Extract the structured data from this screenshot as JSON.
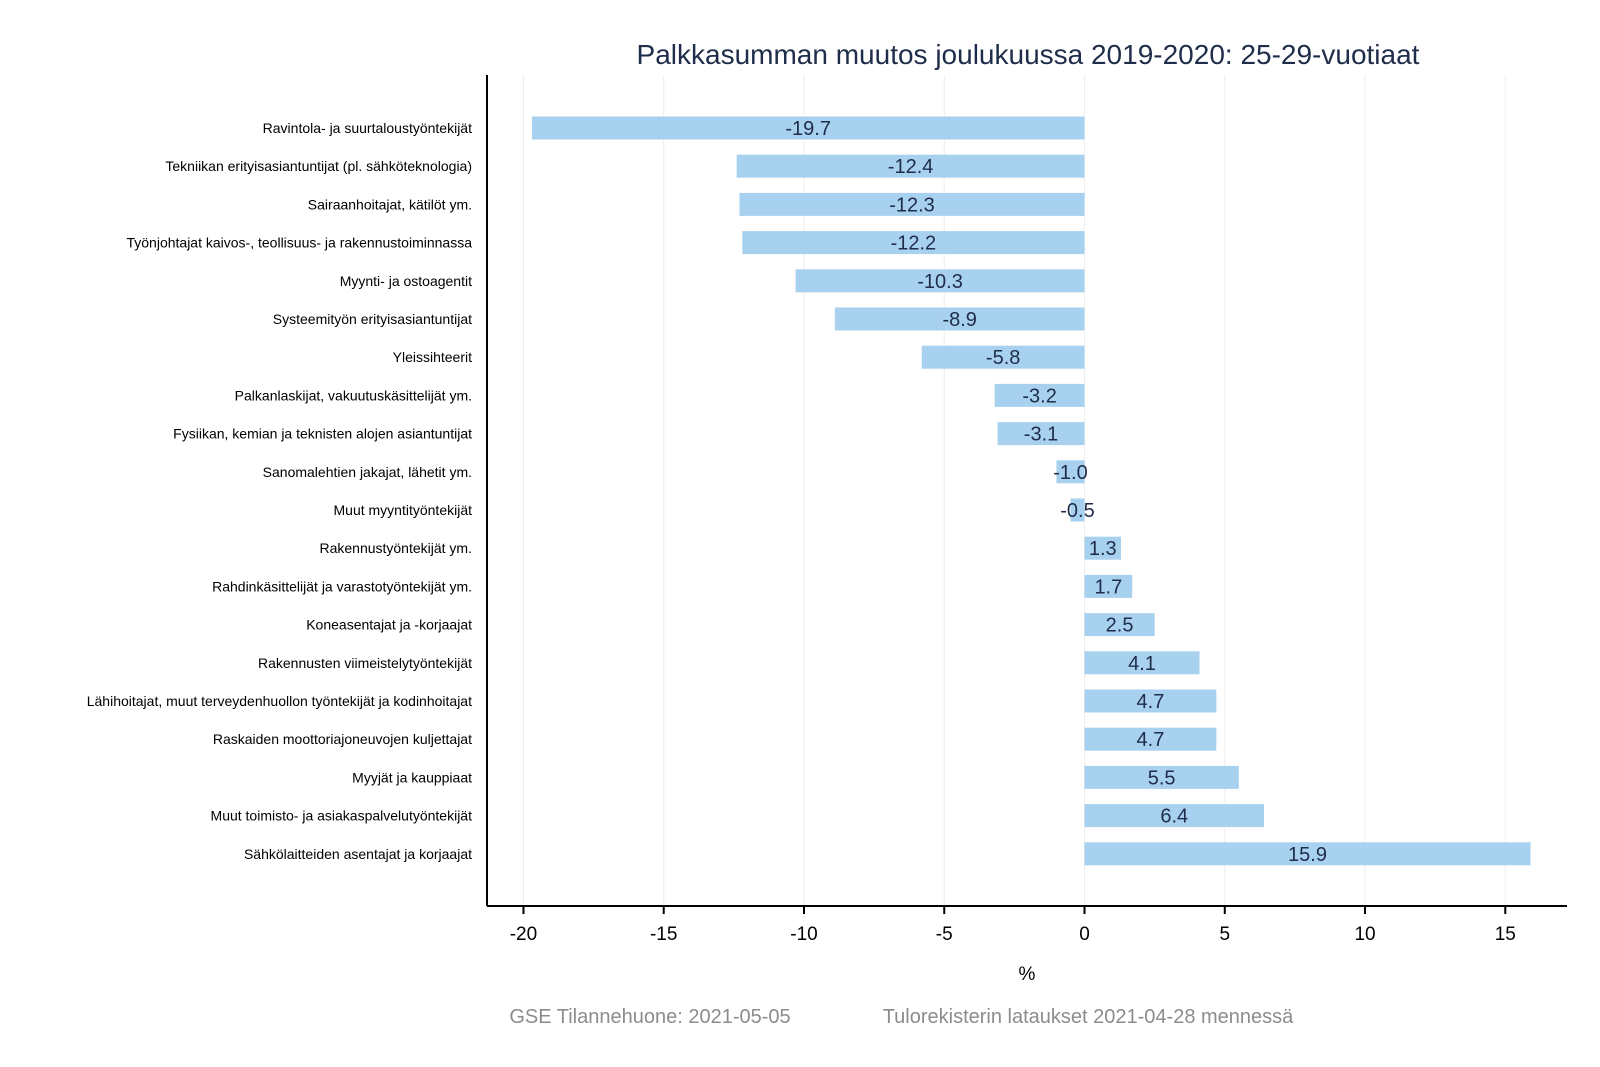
{
  "chart_data": {
    "type": "bar",
    "orientation": "horizontal",
    "title": "Palkkasumman muutos joulukuussa 2019-2020: 25-29-vuotiaat",
    "xlabel": "%",
    "ylabel": "",
    "xlim": [
      -21.3,
      17.2
    ],
    "xticks": [
      -20,
      -15,
      -10,
      -5,
      0,
      5,
      10,
      15
    ],
    "xtick_labels": [
      "-20",
      "-15",
      "-10",
      "-5",
      "0",
      "5",
      "10",
      "15"
    ],
    "grid": true,
    "bar_color": "#a8d1f0",
    "categories": [
      "Ravintola- ja suurtaloustyöntekijät",
      "Tekniikan erityisasiantuntijat (pl. sähköteknologia)",
      "Sairaanhoitajat, kätilöt ym.",
      "Työnjohtajat kaivos-, teollisuus- ja rakennustoiminnassa",
      "Myynti- ja ostoagentit",
      "Systeemityön erityisasiantuntijat",
      "Yleissihteerit",
      "Palkanlaskijat, vakuutuskäsittelijät ym.",
      "Fysiikan, kemian ja teknisten alojen asiantuntijat",
      "Sanomalehtien jakajat, lähetit ym.",
      "Muut myyntityöntekijät",
      "Rakennustyöntekijät ym.",
      "Rahdinkäsittelijät ja varastotyöntekijät ym.",
      "Koneasentajat ja -korjaajat",
      "Rakennusten viimeistelytyöntekijät",
      "Lähihoitajat, muut terveydenhuollon työntekijät ja kodinhoitajat",
      "Raskaiden moottoriajoneuvojen kuljettajat",
      "Myyjät ja kauppiaat",
      "Muut toimisto- ja asiakaspalvelutyöntekijät",
      "Sähkölaitteiden asentajat ja korjaajat"
    ],
    "values": [
      -19.7,
      -12.4,
      -12.3,
      -12.2,
      -10.3,
      -8.9,
      -5.8,
      -3.2,
      -3.1,
      -1.0,
      -0.5,
      1.3,
      1.7,
      2.5,
      4.1,
      4.7,
      4.7,
      5.5,
      6.4,
      15.9
    ],
    "value_labels": [
      "-19.7",
      "-12.4",
      "-12.3",
      "-12.2",
      "-10.3",
      "-8.9",
      "-5.8",
      "-3.2",
      "-3.1",
      "-1.0",
      "-0.5",
      "1.3",
      "1.7",
      "2.5",
      "4.1",
      "4.7",
      "4.7",
      "5.5",
      "6.4",
      "15.9"
    ]
  },
  "footer": {
    "source": "GSE Tilannehuone: 2021-05-05",
    "note": "Tulorekisterin lataukset 2021-04-28 mennessä"
  }
}
